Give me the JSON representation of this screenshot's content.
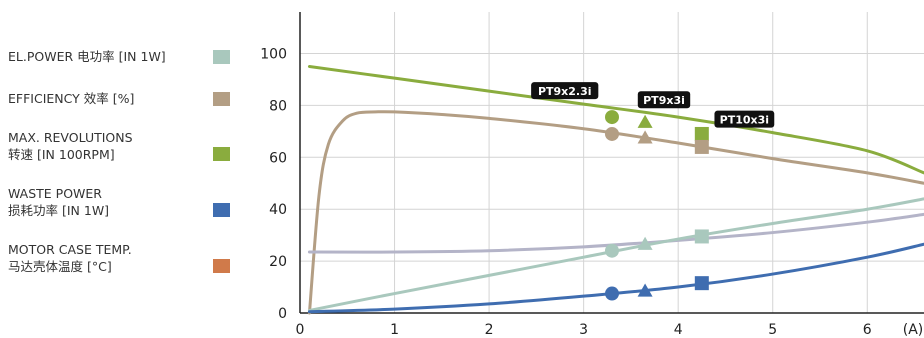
{
  "legend": {
    "items": [
      {
        "line1": "EL.POWER 电功率 [IN 1W]",
        "line2": "",
        "color": "#a9c8bd"
      },
      {
        "line1": "EFFICIENCY 效率 [%]",
        "line2": "",
        "color": "#b39e84"
      },
      {
        "line1": "MAX. REVOLUTIONS",
        "line2": "转速 [IN 100RPM]",
        "color": "#8aac3e"
      },
      {
        "line1": "WASTE POWER",
        "line2": "损耗功率 [IN 1W]",
        "color": "#3f6db0"
      },
      {
        "line1": "MOTOR CASE TEMP.",
        "line2": "马达壳体温度 [°C]",
        "color": "#d07a4a"
      }
    ]
  },
  "chart_data": {
    "type": "line",
    "xlabel": "(A)",
    "ylabel": "",
    "xlim": [
      0,
      6.6
    ],
    "ylim": [
      0,
      116
    ],
    "grid": true,
    "x_ticks": [
      "0",
      "1",
      "2",
      "3",
      "4",
      "5",
      "6"
    ],
    "y_ticks": [
      "0",
      "20",
      "40",
      "60",
      "80",
      "100"
    ],
    "series": [
      {
        "key": "rev",
        "color": "#8aac3e",
        "points": [
          [
            0.1,
            95
          ],
          [
            1,
            90.5
          ],
          [
            2,
            85.5
          ],
          [
            3,
            80.5
          ],
          [
            4,
            75.5
          ],
          [
            5,
            69.5
          ],
          [
            6,
            62.5
          ],
          [
            6.6,
            54
          ]
        ]
      },
      {
        "key": "eff",
        "color": "#b39e84",
        "points": [
          [
            0.1,
            0
          ],
          [
            0.2,
            45
          ],
          [
            0.3,
            65
          ],
          [
            0.45,
            74
          ],
          [
            0.6,
            77
          ],
          [
            0.8,
            77.5
          ],
          [
            1,
            77.5
          ],
          [
            1.5,
            76.5
          ],
          [
            2,
            75
          ],
          [
            3,
            71
          ],
          [
            4,
            65.5
          ],
          [
            5,
            59.5
          ],
          [
            6,
            54
          ],
          [
            6.6,
            50
          ]
        ]
      },
      {
        "key": "temp",
        "color": "#b4b4c8",
        "points": [
          [
            0.1,
            23.5
          ],
          [
            1,
            23.5
          ],
          [
            2,
            24
          ],
          [
            3,
            25.5
          ],
          [
            4,
            28
          ],
          [
            5,
            31
          ],
          [
            6,
            35
          ],
          [
            6.6,
            38
          ]
        ]
      },
      {
        "key": "power",
        "color": "#a9c8bd",
        "points": [
          [
            0.1,
            1
          ],
          [
            1,
            7.5
          ],
          [
            2,
            14.5
          ],
          [
            3,
            21.5
          ],
          [
            4,
            28.5
          ],
          [
            5,
            34.5
          ],
          [
            6,
            40
          ],
          [
            6.6,
            44
          ]
        ]
      },
      {
        "key": "waste",
        "color": "#3f6db0",
        "points": [
          [
            0.1,
            0.5
          ],
          [
            1,
            1.5
          ],
          [
            2,
            3.5
          ],
          [
            3,
            6.5
          ],
          [
            4,
            10
          ],
          [
            5,
            15
          ],
          [
            6,
            21.5
          ],
          [
            6.6,
            26.5
          ]
        ]
      }
    ],
    "markers": [
      {
        "x": 3.3,
        "y": 75.5,
        "shape": "circle",
        "color": "#8aac3e"
      },
      {
        "x": 3.3,
        "y": 69,
        "shape": "circle",
        "color": "#b39e84"
      },
      {
        "x": 3.3,
        "y": 24,
        "shape": "circle",
        "color": "#a9c8bd"
      },
      {
        "x": 3.3,
        "y": 7.5,
        "shape": "circle",
        "color": "#3f6db0"
      },
      {
        "x": 3.65,
        "y": 73.5,
        "shape": "triangle",
        "color": "#8aac3e"
      },
      {
        "x": 3.65,
        "y": 67.5,
        "shape": "triangle",
        "color": "#b39e84"
      },
      {
        "x": 3.65,
        "y": 26.5,
        "shape": "triangle",
        "color": "#a9c8bd"
      },
      {
        "x": 3.65,
        "y": 8.5,
        "shape": "triangle",
        "color": "#3f6db0"
      },
      {
        "x": 4.25,
        "y": 69,
        "shape": "square",
        "color": "#8aac3e"
      },
      {
        "x": 4.25,
        "y": 64,
        "shape": "square",
        "color": "#b39e84"
      },
      {
        "x": 4.25,
        "y": 29.5,
        "shape": "square",
        "color": "#a9c8bd"
      },
      {
        "x": 4.25,
        "y": 11.5,
        "shape": "square",
        "color": "#3f6db0"
      }
    ],
    "annotations": [
      {
        "text": "PT9x2.3i",
        "x": 2.8,
        "y": 85.5
      },
      {
        "text": "PT9x3i",
        "x": 3.85,
        "y": 82
      },
      {
        "text": "PT10x3i",
        "x": 4.7,
        "y": 74.5
      }
    ]
  }
}
